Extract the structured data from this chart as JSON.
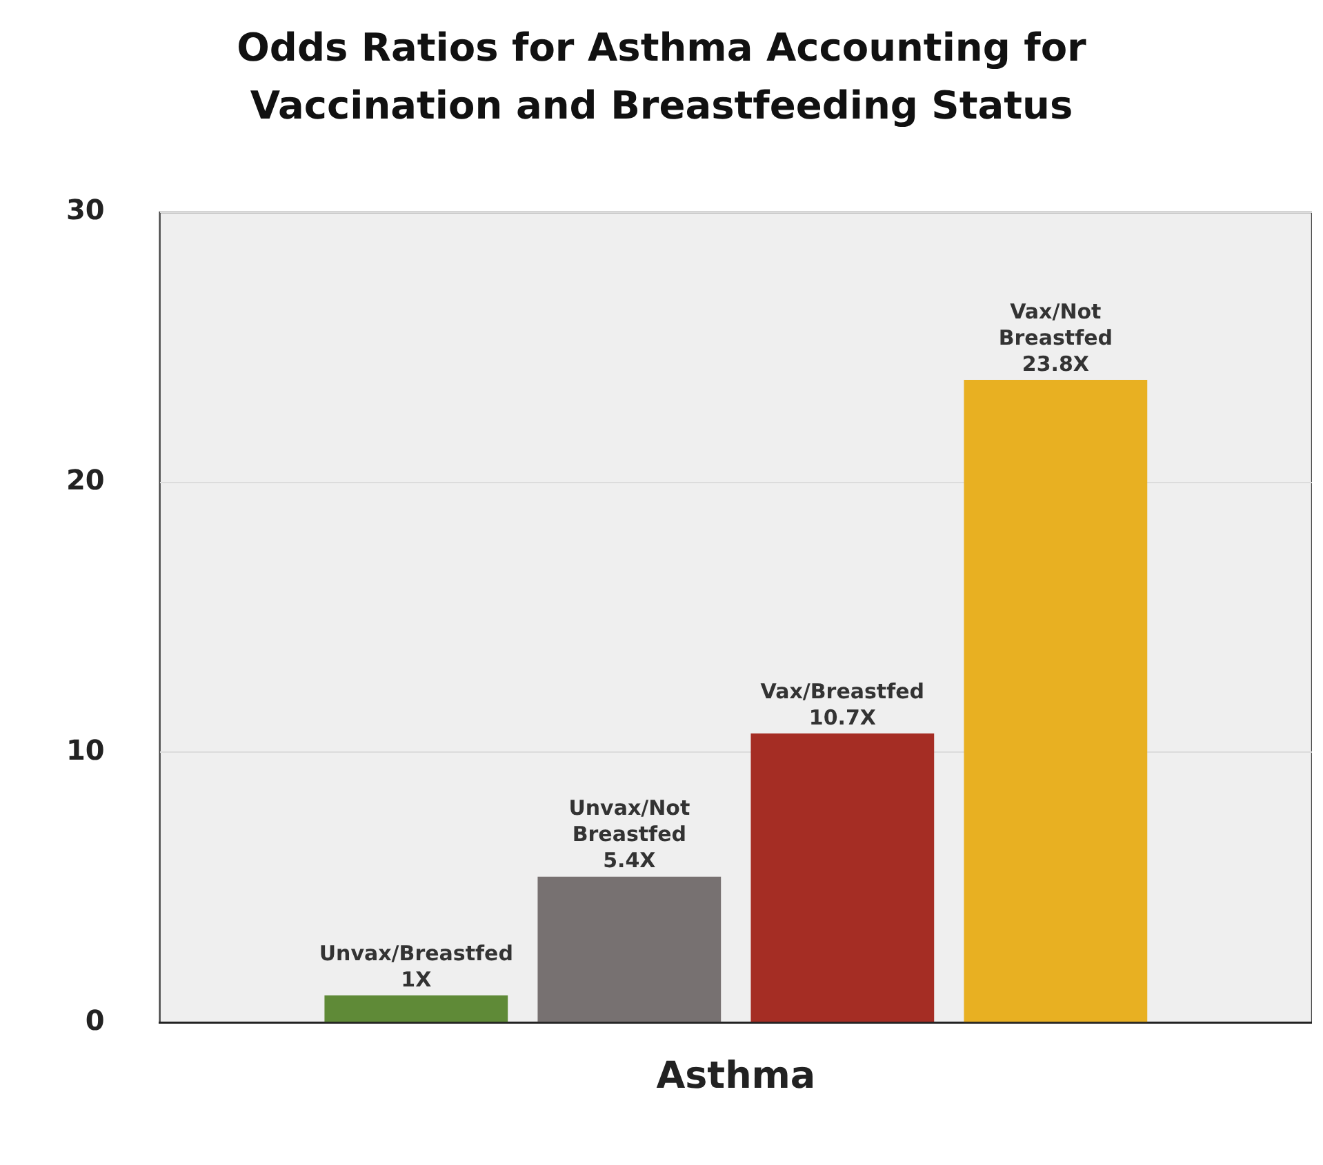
{
  "chart_data": {
    "type": "bar",
    "title": "Odds Ratios for Asthma Accounting for Vaccination and Breastfeeding Status",
    "categories": [
      "Asthma"
    ],
    "series": [
      {
        "name": "Unvax/Breastfed",
        "color": "#5f8a37",
        "values": [
          1
        ],
        "value_labels": [
          "1X"
        ]
      },
      {
        "name": "Unvax/Not Breastfed",
        "color": "#777171",
        "values": [
          5.4
        ],
        "value_labels": [
          "5.4X"
        ]
      },
      {
        "name": "Vax/Breastfed",
        "color": "#a52d24",
        "values": [
          10.7
        ],
        "value_labels": [
          "10.7X"
        ]
      },
      {
        "name": "Vax/Not Breastfed",
        "color": "#e8b022",
        "values": [
          23.8
        ],
        "value_labels": [
          "23.8X"
        ]
      }
    ],
    "ylim": [
      0,
      30
    ],
    "yticks": [
      0,
      10,
      20,
      30
    ],
    "grid": "y",
    "legend": false
  }
}
